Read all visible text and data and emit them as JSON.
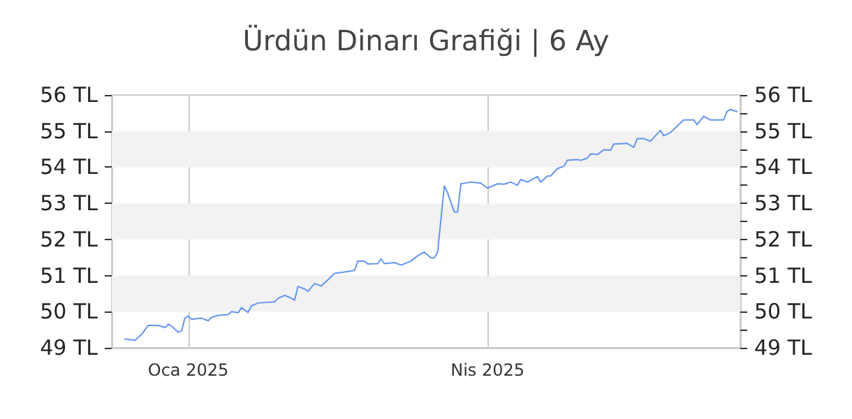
{
  "chart_data": {
    "type": "line",
    "title": "Ürdün Dinarı Grafiği | 6 Ay",
    "x": [
      "2024-12-13",
      "2024-12-16",
      "2024-12-18",
      "2024-12-20",
      "2024-12-23",
      "2024-12-25",
      "2024-12-26",
      "2024-12-27",
      "2024-12-29",
      "2024-12-30",
      "2024-12-31",
      "2025-01-01",
      "2025-01-02",
      "2025-01-05",
      "2025-01-07",
      "2025-01-08",
      "2025-01-10",
      "2025-01-13",
      "2025-01-14",
      "2025-01-16",
      "2025-01-17",
      "2025-01-19",
      "2025-01-20",
      "2025-01-22",
      "2025-01-27",
      "2025-01-28",
      "2025-01-30",
      "2025-02-01",
      "2025-02-02",
      "2025-02-03",
      "2025-02-05",
      "2025-02-06",
      "2025-02-08",
      "2025-02-10",
      "2025-02-12",
      "2025-02-14",
      "2025-02-17",
      "2025-02-20",
      "2025-02-21",
      "2025-02-23",
      "2025-02-24",
      "2025-02-27",
      "2025-02-28",
      "2025-03-01",
      "2025-03-04",
      "2025-03-06",
      "2025-03-09",
      "2025-03-11",
      "2025-03-13",
      "2025-03-15",
      "2025-03-16",
      "2025-03-17",
      "2025-03-19",
      "2025-03-20",
      "2025-03-22",
      "2025-03-23",
      "2025-03-24",
      "2025-03-27",
      "2025-03-30",
      "2025-04-01",
      "2025-04-04",
      "2025-04-06",
      "2025-04-08",
      "2025-04-10",
      "2025-04-11",
      "2025-04-13",
      "2025-04-16",
      "2025-04-17",
      "2025-04-19",
      "2025-04-20",
      "2025-04-22",
      "2025-04-24",
      "2025-04-25",
      "2025-04-28",
      "2025-04-29",
      "2025-05-01",
      "2025-05-02",
      "2025-05-04",
      "2025-05-06",
      "2025-05-08",
      "2025-05-09",
      "2025-05-13",
      "2025-05-15",
      "2025-05-16",
      "2025-05-18",
      "2025-05-20",
      "2025-05-23",
      "2025-05-24",
      "2025-05-26",
      "2025-05-30",
      "2025-06-02",
      "2025-06-03",
      "2025-06-05",
      "2025-06-07",
      "2025-06-11",
      "2025-06-12",
      "2025-06-13",
      "2025-06-15"
    ],
    "series": [
      {
        "color": "#6495ed",
        "values": [
          49.24,
          49.21,
          49.37,
          49.62,
          49.62,
          49.56,
          49.65,
          49.6,
          49.43,
          49.47,
          49.82,
          49.88,
          49.79,
          49.82,
          49.75,
          49.84,
          49.9,
          49.92,
          50.0,
          49.97,
          50.11,
          49.98,
          50.16,
          50.24,
          50.27,
          50.37,
          50.45,
          50.37,
          50.32,
          50.7,
          50.63,
          50.56,
          50.78,
          50.71,
          50.88,
          51.06,
          51.1,
          51.14,
          51.4,
          51.4,
          51.32,
          51.33,
          51.46,
          51.33,
          51.36,
          51.29,
          51.4,
          51.55,
          51.65,
          51.49,
          51.49,
          51.65,
          53.48,
          53.29,
          52.76,
          52.76,
          53.54,
          53.59,
          53.56,
          53.42,
          53.54,
          53.53,
          53.59,
          53.5,
          53.66,
          53.59,
          53.74,
          53.59,
          53.75,
          53.76,
          53.96,
          54.03,
          54.19,
          54.21,
          54.19,
          54.25,
          54.37,
          54.35,
          54.48,
          54.47,
          54.64,
          54.66,
          54.55,
          54.79,
          54.79,
          54.72,
          55.02,
          54.87,
          54.96,
          55.31,
          55.31,
          55.18,
          55.41,
          55.31,
          55.31,
          55.54,
          55.6,
          55.54
        ]
      }
    ],
    "xlim": [
      "2024-12-09",
      "2025-06-16"
    ],
    "xticks": [
      {
        "value": "2025-01-01",
        "label": "Oca 2025"
      },
      {
        "value": "2025-04-01",
        "label": "Nis 2025"
      }
    ],
    "ylim": [
      49,
      56
    ],
    "yticks": [
      {
        "value": 49,
        "label": "49 TL"
      },
      {
        "value": 50,
        "label": "50 TL"
      },
      {
        "value": 51,
        "label": "51 TL"
      },
      {
        "value": 52,
        "label": "52 TL"
      },
      {
        "value": 53,
        "label": "53 TL"
      },
      {
        "value": 54,
        "label": "54 TL"
      },
      {
        "value": 55,
        "label": "55 TL"
      },
      {
        "value": 56,
        "label": "56 TL"
      }
    ],
    "y2lim": [
      49,
      56
    ],
    "y2ticks": [
      {
        "value": 49,
        "label": "49 TL"
      },
      {
        "value": 49.5,
        "label": null
      },
      {
        "value": 50,
        "label": "50 TL"
      },
      {
        "value": 50.5,
        "label": null
      },
      {
        "value": 51,
        "label": "51 TL"
      },
      {
        "value": 51.5,
        "label": null
      },
      {
        "value": 52,
        "label": "52 TL"
      },
      {
        "value": 52.5,
        "label": null
      },
      {
        "value": 53,
        "label": "53 TL"
      },
      {
        "value": 53.5,
        "label": null
      },
      {
        "value": 54,
        "label": "54 TL"
      },
      {
        "value": 54.5,
        "label": null
      },
      {
        "value": 55,
        "label": "55 TL"
      },
      {
        "value": 55.5,
        "label": null
      },
      {
        "value": 56,
        "label": "56 TL"
      }
    ],
    "bands": [
      {
        "axis": "y",
        "from": 50,
        "to": 51,
        "color": "#f2f2f2"
      },
      {
        "axis": "y",
        "from": 52,
        "to": 53,
        "color": "#f2f2f2"
      },
      {
        "axis": "y",
        "from": 54,
        "to": 55,
        "color": "#f2f2f2"
      }
    ],
    "grid": "x",
    "marker": "none",
    "line_style": "solid"
  }
}
